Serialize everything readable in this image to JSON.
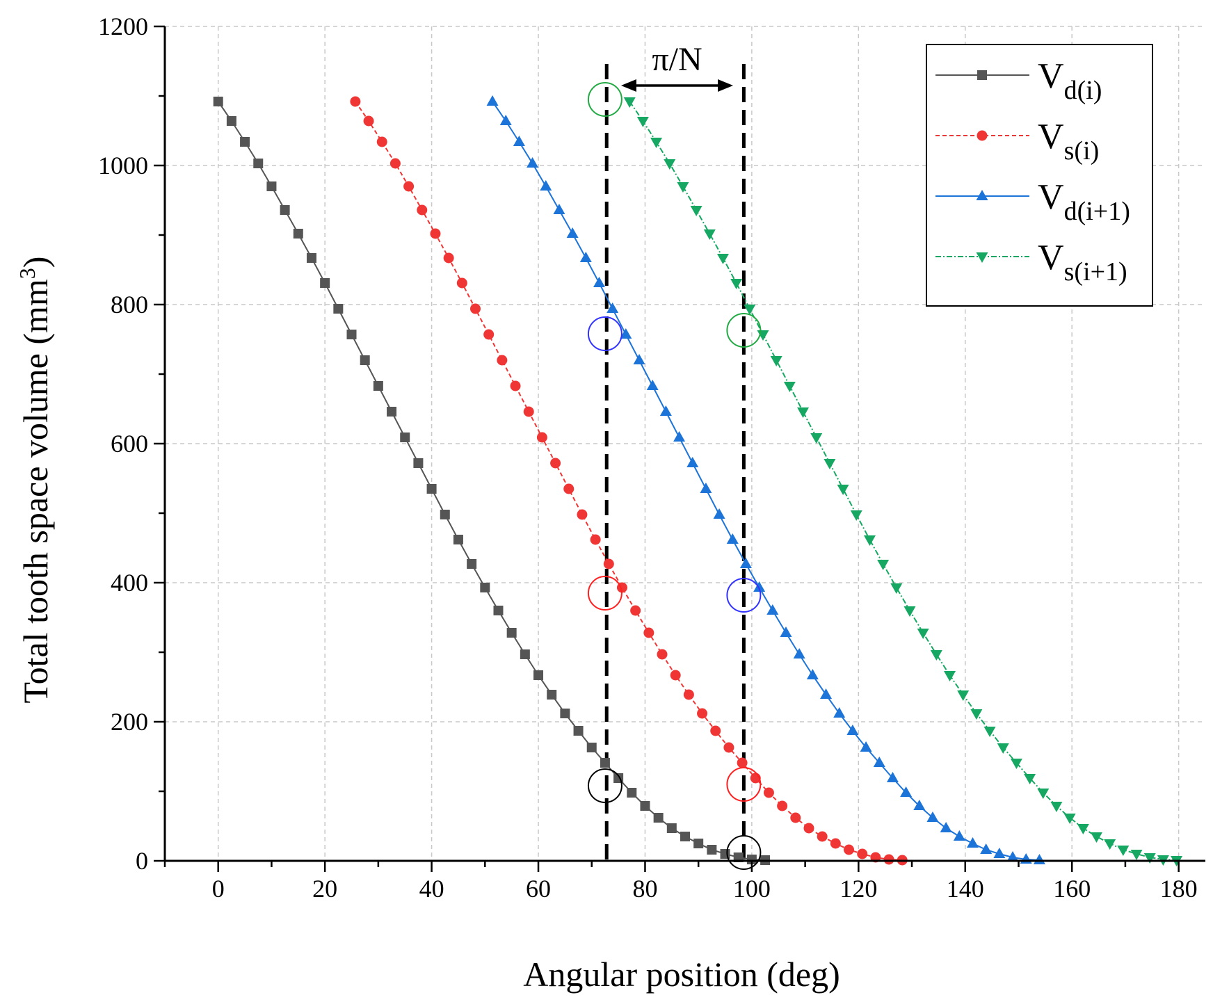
{
  "chart_data": {
    "type": "line",
    "title": "",
    "xlabel": "Angular position (deg)",
    "ylabel_main": "Total tooth space volume (mm",
    "ylabel_sup": "3",
    "ylabel_close": ")",
    "xlim": [
      -10,
      185
    ],
    "ylim": [
      0,
      1200
    ],
    "xticks": [
      0,
      20,
      40,
      60,
      80,
      100,
      120,
      140,
      160,
      180
    ],
    "yticks": [
      0,
      200,
      400,
      600,
      800,
      1000,
      1200
    ],
    "grid": true,
    "legend_position": "top-right",
    "shape_x": [
      0,
      2.5,
      5,
      7.5,
      10,
      12.5,
      15,
      17.5,
      20,
      22.5,
      25,
      27.5,
      30,
      32.5,
      35,
      37.5,
      40,
      42.5,
      45,
      47.5,
      50,
      52.5,
      55,
      57.5,
      60,
      62.5,
      65,
      67.5,
      70,
      72.5,
      75,
      77.5,
      80,
      82.5,
      85,
      87.5,
      90,
      92.5,
      95,
      97.5,
      100,
      102.5
    ],
    "shape_values": [
      1092,
      1064,
      1034,
      1003,
      970,
      936,
      902,
      867,
      831,
      794,
      757,
      720,
      683,
      646,
      609,
      572,
      535,
      498,
      462,
      427,
      393,
      360,
      328,
      297,
      267,
      239,
      212,
      187,
      163,
      141,
      119,
      98,
      79,
      62,
      47,
      35,
      25,
      16,
      10,
      5,
      2,
      1
    ],
    "series": [
      {
        "name": "V",
        "sub": "d(i)",
        "offset": 0,
        "color": "#555555",
        "marker": "square",
        "dash": ""
      },
      {
        "name": "V",
        "sub": "s(i)",
        "offset": 25.7,
        "color": "#f03535",
        "marker": "circle",
        "dash": "6,4"
      },
      {
        "name": "V",
        "sub": "d(i+1)",
        "offset": 51.4,
        "color": "#1c74d9",
        "marker": "triangle-up",
        "dash": ""
      },
      {
        "name": "V",
        "sub": "s(i+1)",
        "offset": 77.1,
        "color": "#16a862",
        "marker": "triangle-down",
        "dash": "8,3,2,3"
      }
    ],
    "reference_lines_x": [
      72.8,
      98.5
    ],
    "annotation": {
      "text": "π/N",
      "x_from": 75.5,
      "x_to": 96.5,
      "y": 1115
    },
    "highlight_circles": [
      {
        "x": 72.5,
        "y": 108,
        "color": "#000000"
      },
      {
        "x": 98.5,
        "y": 12,
        "color": "#000000"
      },
      {
        "x": 72.5,
        "y": 385,
        "color": "#ff2020"
      },
      {
        "x": 98.5,
        "y": 110,
        "color": "#ff2020"
      },
      {
        "x": 72.5,
        "y": 758,
        "color": "#3333ff"
      },
      {
        "x": 98.5,
        "y": 382,
        "color": "#3333ff"
      },
      {
        "x": 72.5,
        "y": 1095,
        "color": "#22aa44"
      },
      {
        "x": 98.5,
        "y": 763,
        "color": "#22aa44"
      }
    ]
  }
}
